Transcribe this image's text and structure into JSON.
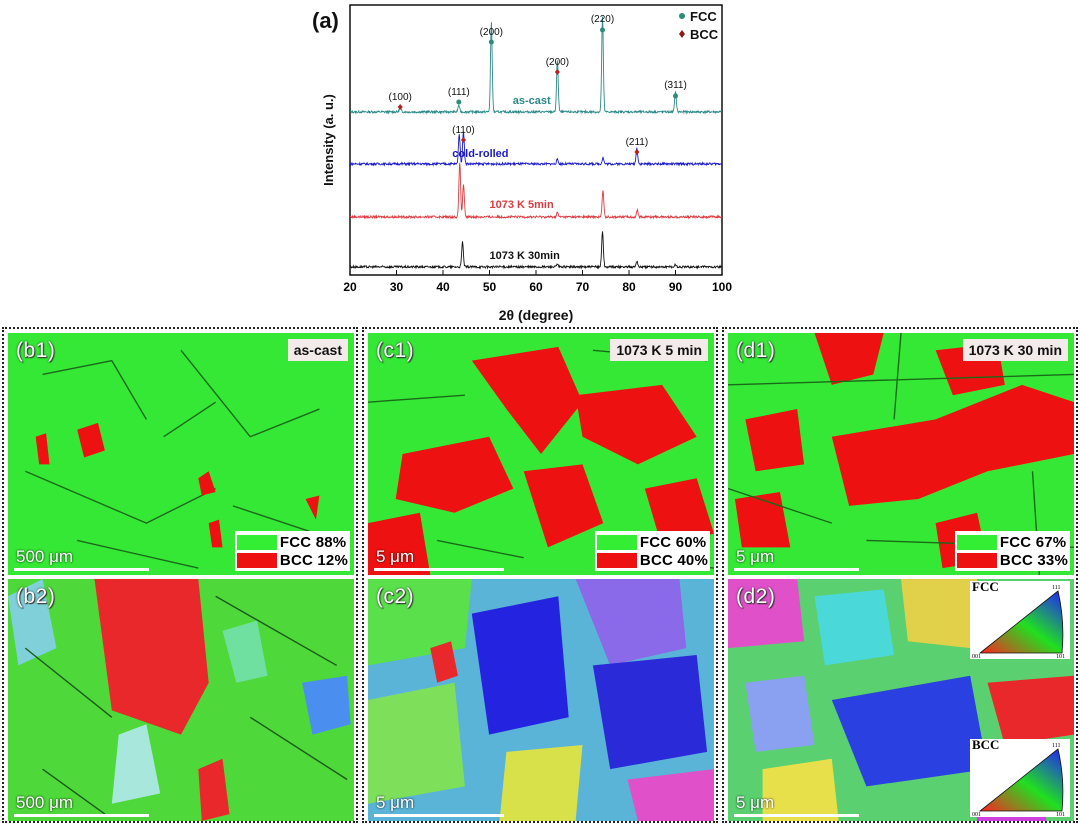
{
  "chart_data": {
    "type": "line",
    "panel_label": "(a)",
    "xlabel": "2θ (degree)",
    "ylabel": "Intensity (a. u.)",
    "xlim": [
      20,
      100
    ],
    "xticks": [
      "20",
      "30",
      "40",
      "50",
      "60",
      "70",
      "80",
      "90",
      "100"
    ],
    "legend": [
      {
        "name": "FCC",
        "color": "#2e8b7a",
        "marker": "circle"
      },
      {
        "name": "BCC",
        "color": "#b22222",
        "marker": "diamond"
      }
    ],
    "series": [
      {
        "name": "as-cast",
        "color": "#2a8a86",
        "peaks": [
          {
            "x": 30.8,
            "h": 0.05
          },
          {
            "x": 43.4,
            "h": 0.07
          },
          {
            "x": 50.4,
            "h": 0.95
          },
          {
            "x": 64.6,
            "h": 0.55
          },
          {
            "x": 74.3,
            "h": 1.0
          },
          {
            "x": 90.0,
            "h": 0.22
          }
        ]
      },
      {
        "name": "cold-rolled",
        "color": "#1a1acc",
        "peaks": [
          {
            "x": 43.5,
            "h": 0.55
          },
          {
            "x": 44.4,
            "h": 0.6
          },
          {
            "x": 64.6,
            "h": 0.08
          },
          {
            "x": 74.4,
            "h": 0.12
          },
          {
            "x": 81.7,
            "h": 0.3
          }
        ]
      },
      {
        "name": "1073 K 5min",
        "color": "#e0393e",
        "peaks": [
          {
            "x": 43.6,
            "h": 1.0
          },
          {
            "x": 44.4,
            "h": 0.6
          },
          {
            "x": 64.6,
            "h": 0.08
          },
          {
            "x": 74.4,
            "h": 0.48
          },
          {
            "x": 81.8,
            "h": 0.12
          }
        ]
      },
      {
        "name": "1073 K 30min",
        "color": "#111111",
        "peaks": [
          {
            "x": 44.2,
            "h": 0.5
          },
          {
            "x": 64.6,
            "h": 0.05
          },
          {
            "x": 74.3,
            "h": 0.72
          },
          {
            "x": 81.7,
            "h": 0.12
          },
          {
            "x": 90.0,
            "h": 0.05
          }
        ]
      }
    ],
    "annotations": [
      {
        "text": "(100)",
        "x": 30.8,
        "phase": "BCC"
      },
      {
        "text": "(111)",
        "x": 43.4,
        "phase": "FCC"
      },
      {
        "text": "(200)",
        "x": 50.4,
        "phase": "FCC"
      },
      {
        "text": "(200)",
        "x": 64.6,
        "phase": "BCC"
      },
      {
        "text": "(220)",
        "x": 74.3,
        "phase": "FCC"
      },
      {
        "text": "(311)",
        "x": 90.0,
        "phase": "FCC"
      },
      {
        "text": "(110)",
        "x": 44.4,
        "phase": "BCC"
      },
      {
        "text": "(211)",
        "x": 81.7,
        "phase": "BCC"
      }
    ]
  },
  "panels": [
    {
      "id": "b",
      "top_label": "(b1)",
      "bottom_label": "(b2)",
      "condition": "as-cast",
      "scale": "500 μm",
      "legend": [
        {
          "text": "FCC 88%",
          "color": "#33ee33"
        },
        {
          "text": "BCC 12%",
          "color": "#ee1111"
        }
      ],
      "bcc_fraction": 0.12
    },
    {
      "id": "c",
      "top_label": "(c1)",
      "bottom_label": "(c2)",
      "condition": "1073 K 5 min",
      "scale": "5 μm",
      "legend": [
        {
          "text": "FCC 60%",
          "color": "#33ee33"
        },
        {
          "text": "BCC 40%",
          "color": "#ee1111"
        }
      ],
      "bcc_fraction": 0.4
    },
    {
      "id": "d",
      "top_label": "(d1)",
      "bottom_label": "(d2)",
      "condition": "1073 K 30 min",
      "scale": "5 μm",
      "legend": [
        {
          "text": "FCC 67%",
          "color": "#33ee33"
        },
        {
          "text": "BCC 33%",
          "color": "#ee1111"
        }
      ],
      "bcc_fraction": 0.33
    }
  ],
  "ipf_keys": [
    {
      "name": "FCC",
      "corner_top": "111",
      "corner_left": "001",
      "corner_right": "101"
    },
    {
      "name": "BCC",
      "corner_top": "111",
      "corner_left": "001",
      "corner_right": "101"
    }
  ]
}
